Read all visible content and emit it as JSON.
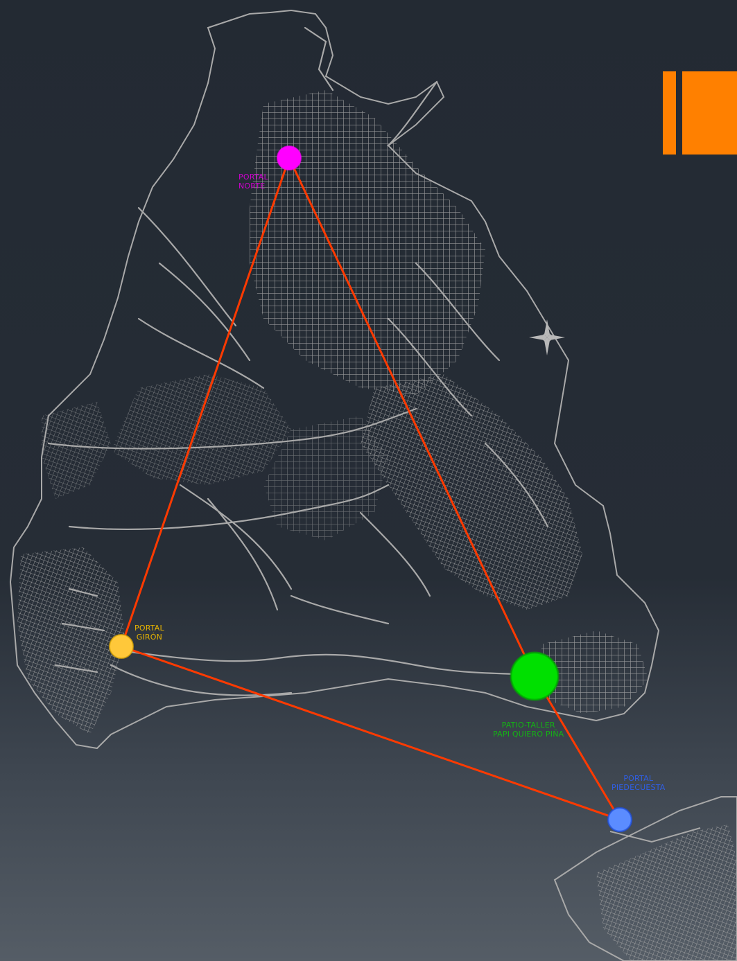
{
  "colors": {
    "route": "#ff3a00",
    "roads": "#a9a9a9",
    "accent": "#ff8000"
  },
  "icons": {
    "north_arrow": "compass-rose-icon"
  },
  "stations": {
    "norte": {
      "line1": "PORTAL",
      "line2": "NORTE",
      "color": "#ff00ff"
    },
    "giron": {
      "line1": "PORTAL",
      "line2": "GIRÓN",
      "color": "#ffc83a"
    },
    "patio": {
      "line1": "PATIO-TALLER",
      "line2": "PAPI QUIERO PIÑA",
      "color": "#00e000"
    },
    "piedecuesta": {
      "line1": "PORTAL",
      "line2": "PIEDECUESTA",
      "color": "#5b8cff"
    }
  }
}
